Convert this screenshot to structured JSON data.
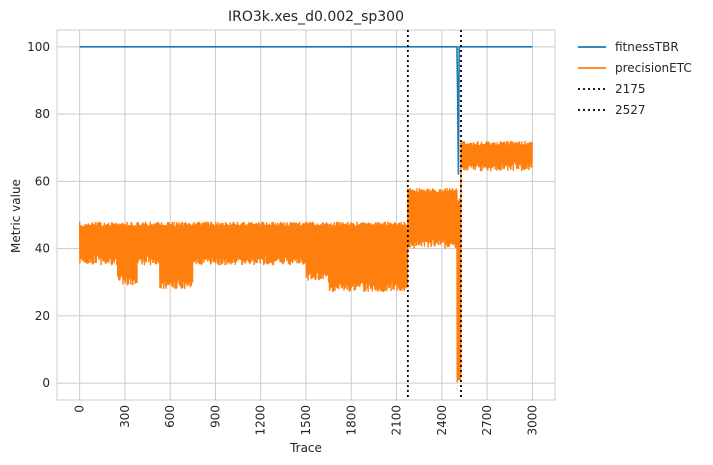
{
  "chart_data": {
    "type": "line",
    "title": "IRO3k.xes_d0.002_sp300",
    "xlabel": "Trace",
    "ylabel": "Metric value",
    "xlim": [
      -150,
      3150
    ],
    "ylim": [
      -5,
      105
    ],
    "xticks": [
      0,
      300,
      600,
      900,
      1200,
      1500,
      1800,
      2100,
      2400,
      2700,
      3000
    ],
    "yticks": [
      0,
      20,
      40,
      60,
      80,
      100
    ],
    "grid": true,
    "legend_position": "outside-top-right",
    "series": [
      {
        "name": "fitnessTBR",
        "color": "#1f77b4",
        "points": [
          [
            0,
            100
          ],
          [
            2500,
            100
          ],
          [
            2505,
            85
          ],
          [
            2510,
            62
          ],
          [
            2515,
            100
          ],
          [
            3000,
            100
          ]
        ]
      },
      {
        "name": "precisionETC",
        "color": "#ff7f0e",
        "segments": [
          {
            "x": [
              0,
              250
            ],
            "low": 35,
            "high": 48
          },
          {
            "x": [
              250,
              380
            ],
            "low": 29,
            "high": 48
          },
          {
            "x": [
              380,
              530
            ],
            "low": 35,
            "high": 48
          },
          {
            "x": [
              530,
              750
            ],
            "low": 28,
            "high": 48
          },
          {
            "x": [
              750,
              1500
            ],
            "low": 35,
            "high": 48
          },
          {
            "x": [
              1500,
              1650
            ],
            "low": 30,
            "high": 48
          },
          {
            "x": [
              1650,
              1850
            ],
            "low": 27,
            "high": 48
          },
          {
            "x": [
              1850,
              2175
            ],
            "low": 27,
            "high": 48
          },
          {
            "x": [
              2175,
              2500
            ],
            "low": 40,
            "high": 58
          },
          {
            "x": [
              2500,
              2527
            ],
            "low": 0,
            "high": 55
          },
          {
            "x": [
              2527,
              3000
            ],
            "low": 63,
            "high": 72
          }
        ]
      }
    ],
    "vlines": [
      {
        "name": "2175",
        "x": 2175,
        "style": "dotted",
        "color": "#000000"
      },
      {
        "name": "2527",
        "x": 2527,
        "style": "dotted",
        "color": "#000000"
      }
    ]
  }
}
